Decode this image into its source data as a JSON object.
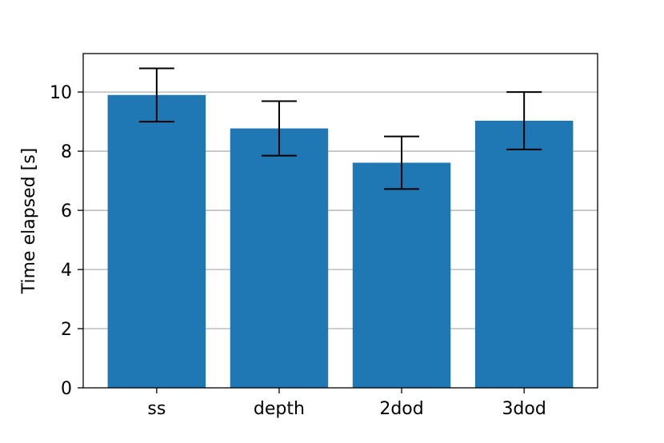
{
  "chart_data": {
    "type": "bar",
    "categories": [
      "ss",
      "depth",
      "2dod",
      "3dod"
    ],
    "values": [
      9.9,
      8.77,
      7.61,
      9.03
    ],
    "errors": [
      0.9,
      0.92,
      0.89,
      0.97
    ],
    "title": "",
    "xlabel": "",
    "ylabel": "Time elapsed [s]",
    "ylim": [
      0,
      11.3
    ],
    "yticks": [
      0,
      2,
      4,
      6,
      8,
      10
    ],
    "grid": "horizontal",
    "legend": "none",
    "bar_color": "#1f77b4",
    "error_color": "#000000",
    "grid_color": "#b0b0b0"
  }
}
